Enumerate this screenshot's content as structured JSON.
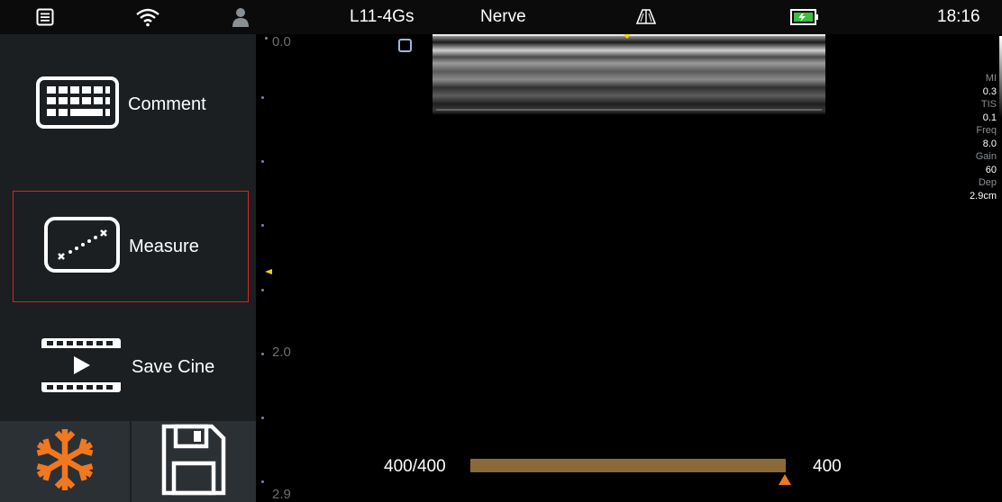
{
  "status_bar": {
    "menu_icon": "list-icon",
    "wifi_icon": "wifi-icon",
    "user_icon": "user-icon",
    "probe": "L11-4Gs",
    "preset": "Nerve",
    "probe_icon": "probe-icon",
    "battery_icon": "battery-icon",
    "time": "18:16"
  },
  "sidebar": {
    "comment_label": "Comment",
    "measure_label": "Measure",
    "save_cine_label": "Save Cine",
    "freeze_icon": "snowflake-icon",
    "save_icon": "floppy-disk-icon",
    "accent_color": "#f07820",
    "selected_color": "#e02020"
  },
  "depth_scale": {
    "top": "0.0",
    "mid": "2.0",
    "bottom": "2.9"
  },
  "params": {
    "mi_label": "MI",
    "mi_value": "0.3",
    "tis_label": "TIS",
    "tis_value": "0.1",
    "freq_label": "Freq",
    "freq_value": "8.0",
    "gain_label": "Gain",
    "gain_value": "60",
    "dep_label": "Dep",
    "dep_value": "2.9cm"
  },
  "cine": {
    "frame_counter": "400/400",
    "frame_value": "400",
    "progress": 1.0,
    "bar_color": "#8a6a3a"
  }
}
